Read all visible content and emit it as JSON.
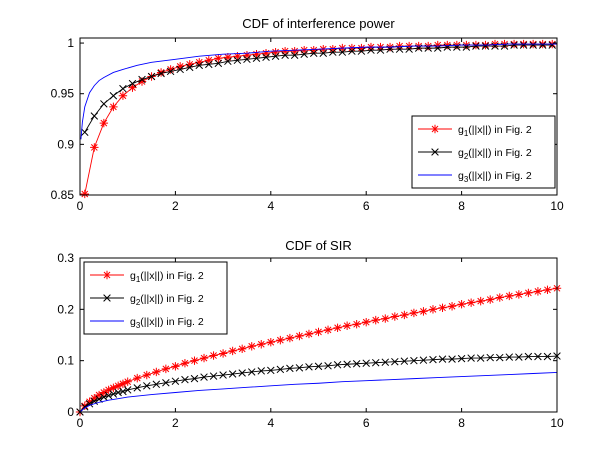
{
  "chart_data": [
    {
      "type": "line",
      "title": "CDF of interference power",
      "xlabel": "",
      "ylabel": "",
      "xlim": [
        0,
        10
      ],
      "ylim": [
        0.85,
        1.005
      ],
      "xticks": [
        "0",
        "2",
        "4",
        "6",
        "8",
        "10"
      ],
      "yticks": [
        "0.85",
        "0.9",
        "0.95",
        "1"
      ],
      "grid": false,
      "legend_position": "bottom-right",
      "series": [
        {
          "name": "g1(||x||) in Fig. 2",
          "legend": {
            "main": "g",
            "sub": "1",
            "rest": "(||x||) in Fig. 2"
          },
          "color": "#ff0000",
          "marker": "star",
          "x": [
            0.1,
            0.3,
            0.5,
            0.7,
            0.9,
            1.1,
            1.3,
            1.5,
            1.7,
            1.9,
            2.1,
            2.3,
            2.5,
            2.7,
            2.9,
            3.1,
            3.3,
            3.5,
            3.7,
            3.9,
            4.1,
            4.3,
            4.5,
            4.7,
            4.9,
            5.1,
            5.3,
            5.5,
            5.7,
            5.9,
            6.1,
            6.3,
            6.5,
            6.7,
            6.9,
            7.1,
            7.3,
            7.5,
            7.7,
            7.9,
            8.1,
            8.3,
            8.5,
            8.7,
            8.9,
            9.1,
            9.3,
            9.5,
            9.7,
            9.9
          ],
          "y": [
            0.851,
            0.897,
            0.921,
            0.937,
            0.948,
            0.956,
            0.962,
            0.967,
            0.971,
            0.974,
            0.977,
            0.979,
            0.981,
            0.983,
            0.985,
            0.986,
            0.987,
            0.988,
            0.989,
            0.99,
            0.991,
            0.992,
            0.992,
            0.993,
            0.993,
            0.994,
            0.994,
            0.995,
            0.995,
            0.995,
            0.996,
            0.996,
            0.996,
            0.997,
            0.997,
            0.997,
            0.997,
            0.998,
            0.998,
            0.998,
            0.998,
            0.998,
            0.998,
            0.999,
            0.999,
            0.999,
            0.999,
            0.999,
            0.999,
            0.999
          ]
        },
        {
          "name": "g2(||x||) in Fig. 2",
          "legend": {
            "main": "g",
            "sub": "2",
            "rest": "(||x||) in Fig. 2"
          },
          "color": "#000000",
          "marker": "x",
          "x": [
            0.1,
            0.3,
            0.5,
            0.7,
            0.9,
            1.1,
            1.3,
            1.5,
            1.7,
            1.9,
            2.1,
            2.3,
            2.5,
            2.7,
            2.9,
            3.1,
            3.3,
            3.5,
            3.7,
            3.9,
            4.1,
            4.3,
            4.5,
            4.7,
            4.9,
            5.1,
            5.3,
            5.5,
            5.7,
            5.9,
            6.1,
            6.3,
            6.5,
            6.7,
            6.9,
            7.1,
            7.3,
            7.5,
            7.7,
            7.9,
            8.1,
            8.3,
            8.5,
            8.7,
            8.9,
            9.1,
            9.3,
            9.5,
            9.7,
            9.9
          ],
          "y": [
            0.912,
            0.928,
            0.94,
            0.948,
            0.955,
            0.96,
            0.964,
            0.967,
            0.97,
            0.972,
            0.974,
            0.976,
            0.978,
            0.979,
            0.98,
            0.982,
            0.983,
            0.984,
            0.985,
            0.986,
            0.987,
            0.988,
            0.988,
            0.989,
            0.99,
            0.99,
            0.991,
            0.991,
            0.992,
            0.992,
            0.993,
            0.993,
            0.994,
            0.994,
            0.994,
            0.995,
            0.995,
            0.995,
            0.996,
            0.996,
            0.996,
            0.997,
            0.997,
            0.997,
            0.997,
            0.998,
            0.998,
            0.998,
            0.998,
            0.998
          ]
        },
        {
          "name": "g3(||x||) in Fig. 2",
          "legend": {
            "main": "g",
            "sub": "3",
            "rest": "(||x||) in Fig. 2"
          },
          "color": "#0000ff",
          "marker": "none",
          "x": [
            0.02,
            0.05,
            0.1,
            0.2,
            0.3,
            0.4,
            0.5,
            0.7,
            0.9,
            1.2,
            1.5,
            2.0,
            2.5,
            3.0,
            3.5,
            4.0,
            4.5,
            5.0,
            5.5,
            6.0,
            6.5,
            7.0,
            7.5,
            8.0,
            8.5,
            9.0,
            9.5,
            10.0
          ],
          "y": [
            0.905,
            0.922,
            0.937,
            0.951,
            0.958,
            0.963,
            0.966,
            0.971,
            0.974,
            0.978,
            0.981,
            0.984,
            0.987,
            0.989,
            0.99,
            0.992,
            0.993,
            0.994,
            0.995,
            0.996,
            0.996,
            0.997,
            0.997,
            0.998,
            0.998,
            0.999,
            0.999,
            0.999
          ]
        }
      ]
    },
    {
      "type": "line",
      "title": "CDF of SIR",
      "xlabel": "",
      "ylabel": "",
      "xlim": [
        0,
        10
      ],
      "ylim": [
        0,
        0.3
      ],
      "xticks": [
        "0",
        "2",
        "4",
        "6",
        "8",
        "10"
      ],
      "yticks": [
        "0",
        "0.1",
        "0.2",
        "0.3"
      ],
      "grid": false,
      "legend_position": "top-left",
      "series": [
        {
          "name": "g1(||x||) in Fig. 2",
          "legend": {
            "main": "g",
            "sub": "1",
            "rest": "(||x||) in Fig. 2"
          },
          "color": "#ff0000",
          "marker": "star",
          "x": [
            0,
            0.1,
            0.2,
            0.3,
            0.4,
            0.5,
            0.6,
            0.7,
            0.8,
            0.9,
            1.0,
            1.2,
            1.4,
            1.6,
            1.8,
            2.0,
            2.2,
            2.4,
            2.6,
            2.8,
            3.0,
            3.2,
            3.4,
            3.6,
            3.8,
            4.0,
            4.2,
            4.4,
            4.6,
            4.8,
            5.0,
            5.2,
            5.4,
            5.6,
            5.8,
            6.0,
            6.2,
            6.4,
            6.6,
            6.8,
            7.0,
            7.2,
            7.4,
            7.6,
            7.8,
            8.0,
            8.2,
            8.4,
            8.6,
            8.8,
            9.0,
            9.2,
            9.4,
            9.6,
            9.8,
            10.0
          ],
          "y": [
            0.0,
            0.012,
            0.02,
            0.027,
            0.033,
            0.038,
            0.043,
            0.047,
            0.051,
            0.055,
            0.059,
            0.066,
            0.072,
            0.078,
            0.084,
            0.089,
            0.095,
            0.1,
            0.105,
            0.11,
            0.114,
            0.119,
            0.123,
            0.128,
            0.132,
            0.136,
            0.14,
            0.144,
            0.148,
            0.152,
            0.156,
            0.16,
            0.164,
            0.168,
            0.171,
            0.175,
            0.179,
            0.182,
            0.186,
            0.189,
            0.193,
            0.196,
            0.2,
            0.203,
            0.206,
            0.21,
            0.213,
            0.216,
            0.219,
            0.223,
            0.226,
            0.229,
            0.232,
            0.235,
            0.238,
            0.241
          ]
        },
        {
          "name": "g2(||x||) in Fig. 2",
          "legend": {
            "main": "g",
            "sub": "2",
            "rest": "(||x||) in Fig. 2"
          },
          "color": "#000000",
          "marker": "x",
          "x": [
            0,
            0.1,
            0.2,
            0.3,
            0.4,
            0.5,
            0.6,
            0.7,
            0.8,
            0.9,
            1.0,
            1.2,
            1.4,
            1.6,
            1.8,
            2.0,
            2.2,
            2.4,
            2.6,
            2.8,
            3.0,
            3.2,
            3.4,
            3.6,
            3.8,
            4.0,
            4.2,
            4.4,
            4.6,
            4.8,
            5.0,
            5.2,
            5.4,
            5.6,
            5.8,
            6.0,
            6.2,
            6.4,
            6.6,
            6.8,
            7.0,
            7.2,
            7.4,
            7.6,
            7.8,
            8.0,
            8.2,
            8.4,
            8.6,
            8.8,
            9.0,
            9.2,
            9.4,
            9.6,
            9.8,
            10.0
          ],
          "y": [
            0.0,
            0.01,
            0.016,
            0.021,
            0.025,
            0.029,
            0.032,
            0.035,
            0.038,
            0.04,
            0.043,
            0.047,
            0.051,
            0.054,
            0.057,
            0.06,
            0.063,
            0.065,
            0.068,
            0.07,
            0.072,
            0.074,
            0.076,
            0.078,
            0.08,
            0.081,
            0.083,
            0.085,
            0.086,
            0.088,
            0.089,
            0.09,
            0.092,
            0.093,
            0.094,
            0.095,
            0.096,
            0.097,
            0.098,
            0.099,
            0.1,
            0.101,
            0.102,
            0.103,
            0.103,
            0.104,
            0.105,
            0.105,
            0.106,
            0.106,
            0.107,
            0.107,
            0.108,
            0.108,
            0.108,
            0.109
          ]
        },
        {
          "name": "g3(||x||) in Fig. 2",
          "legend": {
            "main": "g",
            "sub": "3",
            "rest": "(||x||) in Fig. 2"
          },
          "color": "#0000ff",
          "marker": "none",
          "x": [
            0,
            0.1,
            0.2,
            0.4,
            0.6,
            0.8,
            1.0,
            1.5,
            2.0,
            2.5,
            3.0,
            3.5,
            4.0,
            4.5,
            5.0,
            5.5,
            6.0,
            6.5,
            7.0,
            7.5,
            8.0,
            8.5,
            9.0,
            9.5,
            10.0
          ],
          "y": [
            0.0,
            0.008,
            0.013,
            0.019,
            0.023,
            0.026,
            0.029,
            0.034,
            0.038,
            0.042,
            0.045,
            0.048,
            0.051,
            0.054,
            0.056,
            0.059,
            0.061,
            0.063,
            0.065,
            0.067,
            0.069,
            0.071,
            0.073,
            0.075,
            0.077
          ]
        }
      ]
    }
  ]
}
